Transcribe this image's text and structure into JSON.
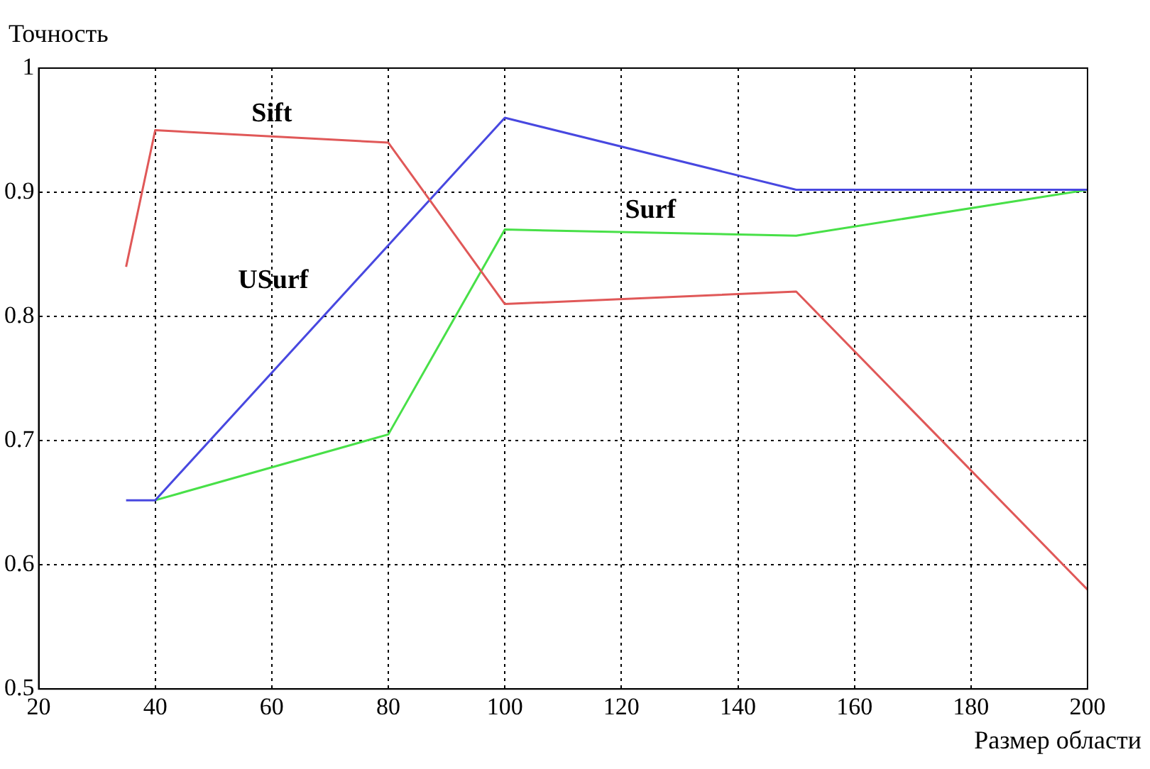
{
  "chart_data": {
    "type": "line",
    "xlabel": "Размер области",
    "ylabel": "Точность",
    "xlim": [
      20,
      200
    ],
    "xticks": [
      20,
      40,
      60,
      80,
      100,
      120,
      140,
      160,
      180,
      200
    ],
    "ylim": [
      0.5,
      1
    ],
    "yticks": [
      0.5,
      0.6,
      0.7,
      0.8,
      0.9,
      1
    ],
    "grid": true,
    "legend": false,
    "marker": "none",
    "line_style": "solid",
    "series": [
      {
        "name": "Sift",
        "color": "#e05858",
        "x": [
          35,
          40,
          80,
          100,
          150,
          200
        ],
        "values": [
          0.84,
          0.95,
          0.94,
          0.81,
          0.82,
          0.58
        ]
      },
      {
        "name": "USurf",
        "color": "#4848e0",
        "x": [
          35,
          40,
          100,
          150,
          200
        ],
        "values": [
          0.652,
          0.652,
          0.96,
          0.902,
          0.902
        ]
      },
      {
        "name": "Surf",
        "color": "#48e048",
        "x": [
          40,
          80,
          100,
          150,
          200
        ],
        "values": [
          0.652,
          0.705,
          0.87,
          0.865,
          0.902
        ]
      }
    ]
  }
}
